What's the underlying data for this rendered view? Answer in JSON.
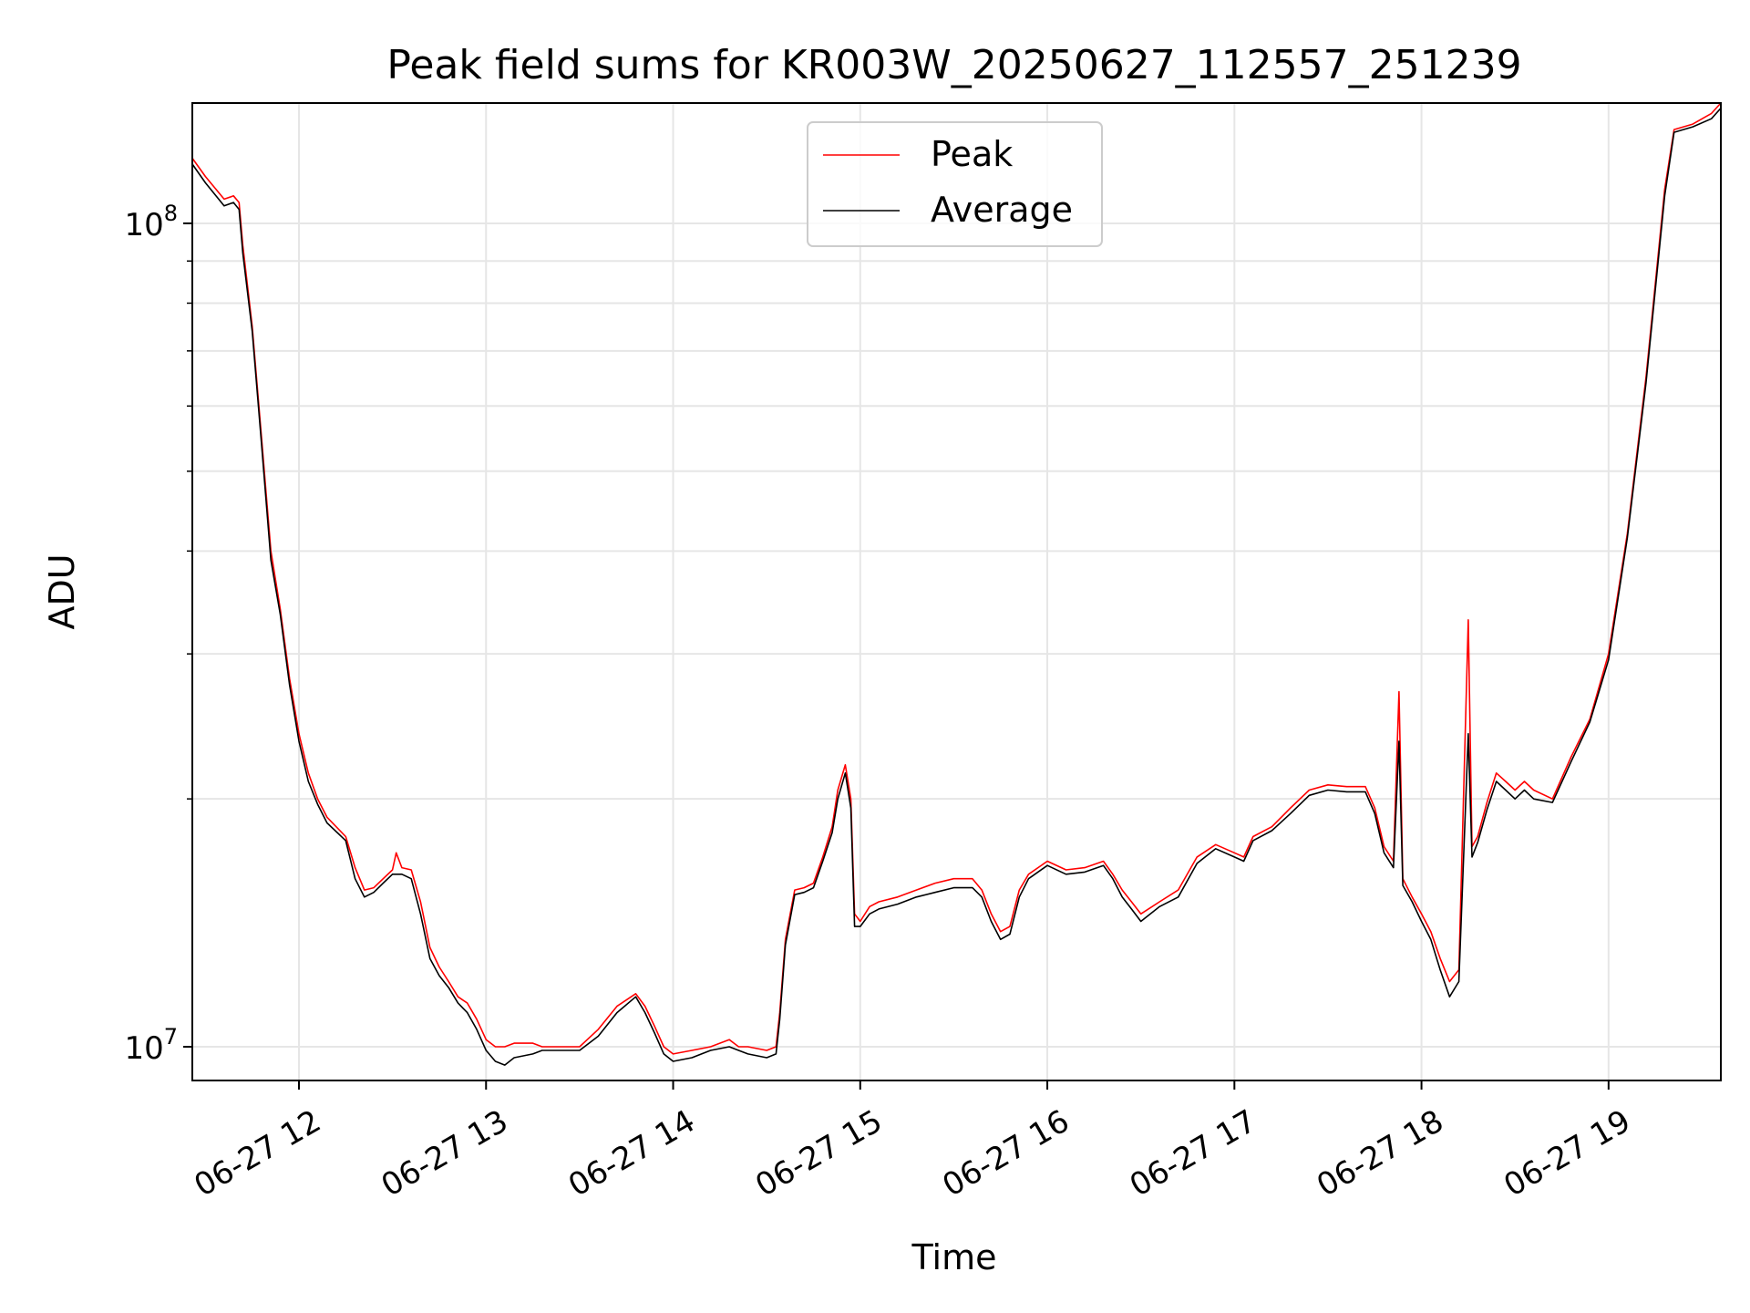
{
  "chart_data": {
    "type": "line",
    "title": "Peak field sums for KR003W_20250627_112557_251239",
    "xlabel": "Time",
    "ylabel": "ADU",
    "x_unit": "time of day on 06-27 (hours)",
    "xlim": [
      11.43,
      19.6
    ],
    "ylim": [
      9100000.0,
      140000000.0
    ],
    "yscale": "log",
    "grid": true,
    "legend_position": "upper center",
    "x_ticks": [
      {
        "value": 12,
        "label": "06-27 12"
      },
      {
        "value": 13,
        "label": "06-27 13"
      },
      {
        "value": 14,
        "label": "06-27 14"
      },
      {
        "value": 15,
        "label": "06-27 15"
      },
      {
        "value": 16,
        "label": "06-27 16"
      },
      {
        "value": 17,
        "label": "06-27 17"
      },
      {
        "value": 18,
        "label": "06-27 18"
      },
      {
        "value": 19,
        "label": "06-27 19"
      }
    ],
    "y_ticks": [
      {
        "value": 10000000,
        "base": "10",
        "exp": "7"
      },
      {
        "value": 100000000,
        "base": "10",
        "exp": "8"
      }
    ],
    "y_minor_ticks": [
      20000000,
      30000000,
      40000000,
      50000000,
      60000000,
      70000000,
      80000000,
      90000000
    ],
    "colors": {
      "peak": "#ff0000",
      "average": "#000000",
      "grid": "#e6e6e6"
    },
    "series": [
      {
        "name": "Peak",
        "color": "#ff0000",
        "points": [
          [
            11.43,
            120000000.0
          ],
          [
            11.5,
            114000000.0
          ],
          [
            11.6,
            107000000.0
          ],
          [
            11.65,
            108000000.0
          ],
          [
            11.68,
            106000000.0
          ],
          [
            11.7,
            94000000.0
          ],
          [
            11.75,
            75000000.0
          ],
          [
            11.8,
            55000000.0
          ],
          [
            11.85,
            40000000.0
          ],
          [
            11.9,
            34000000.0
          ],
          [
            11.95,
            28000000.0
          ],
          [
            12.0,
            24000000.0
          ],
          [
            12.05,
            21500000.0
          ],
          [
            12.1,
            20000000.0
          ],
          [
            12.15,
            19000000.0
          ],
          [
            12.25,
            18000000.0
          ],
          [
            12.3,
            16500000.0
          ],
          [
            12.35,
            15500000.0
          ],
          [
            12.4,
            15600000.0
          ],
          [
            12.45,
            16000000.0
          ],
          [
            12.5,
            16400000.0
          ],
          [
            12.52,
            17200000.0
          ],
          [
            12.55,
            16500000.0
          ],
          [
            12.6,
            16400000.0
          ],
          [
            12.65,
            15000000.0
          ],
          [
            12.7,
            13200000.0
          ],
          [
            12.75,
            12500000.0
          ],
          [
            12.8,
            12000000.0
          ],
          [
            12.85,
            11500000.0
          ],
          [
            12.9,
            11300000.0
          ],
          [
            12.95,
            10800000.0
          ],
          [
            13.0,
            10200000.0
          ],
          [
            13.05,
            10000000.0
          ],
          [
            13.1,
            10000000.0
          ],
          [
            13.15,
            10100000.0
          ],
          [
            13.25,
            10100000.0
          ],
          [
            13.3,
            10000000.0
          ],
          [
            13.4,
            10000000.0
          ],
          [
            13.5,
            10000000.0
          ],
          [
            13.6,
            10500000.0
          ],
          [
            13.7,
            11200000.0
          ],
          [
            13.8,
            11600000.0
          ],
          [
            13.85,
            11200000.0
          ],
          [
            13.9,
            10600000.0
          ],
          [
            13.95,
            10000000.0
          ],
          [
            14.0,
            9800000.0
          ],
          [
            14.1,
            9900000.0
          ],
          [
            14.2,
            10000000.0
          ],
          [
            14.3,
            10200000.0
          ],
          [
            14.35,
            10000000.0
          ],
          [
            14.4,
            10000000.0
          ],
          [
            14.5,
            9900000.0
          ],
          [
            14.55,
            10000000.0
          ],
          [
            14.57,
            11000000.0
          ],
          [
            14.6,
            13500000.0
          ],
          [
            14.65,
            15500000.0
          ],
          [
            14.7,
            15600000.0
          ],
          [
            14.75,
            15800000.0
          ],
          [
            14.8,
            17000000.0
          ],
          [
            14.85,
            18500000.0
          ],
          [
            14.88,
            20500000.0
          ],
          [
            14.92,
            22000000.0
          ],
          [
            14.95,
            20000000.0
          ],
          [
            14.97,
            14500000.0
          ],
          [
            15.0,
            14200000.0
          ],
          [
            15.05,
            14800000.0
          ],
          [
            15.1,
            15000000.0
          ],
          [
            15.2,
            15200000.0
          ],
          [
            15.3,
            15500000.0
          ],
          [
            15.4,
            15800000.0
          ],
          [
            15.5,
            16000000.0
          ],
          [
            15.6,
            16000000.0
          ],
          [
            15.65,
            15500000.0
          ],
          [
            15.7,
            14500000.0
          ],
          [
            15.75,
            13800000.0
          ],
          [
            15.8,
            14000000.0
          ],
          [
            15.85,
            15500000.0
          ],
          [
            15.9,
            16200000.0
          ],
          [
            16.0,
            16800000.0
          ],
          [
            16.1,
            16400000.0
          ],
          [
            16.2,
            16500000.0
          ],
          [
            16.3,
            16800000.0
          ],
          [
            16.35,
            16200000.0
          ],
          [
            16.4,
            15500000.0
          ],
          [
            16.45,
            15000000.0
          ],
          [
            16.5,
            14500000.0
          ],
          [
            16.6,
            15000000.0
          ],
          [
            16.7,
            15500000.0
          ],
          [
            16.8,
            17000000.0
          ],
          [
            16.9,
            17600000.0
          ],
          [
            17.0,
            17200000.0
          ],
          [
            17.05,
            17000000.0
          ],
          [
            17.1,
            18000000.0
          ],
          [
            17.2,
            18500000.0
          ],
          [
            17.3,
            19500000.0
          ],
          [
            17.4,
            20500000.0
          ],
          [
            17.5,
            20800000.0
          ],
          [
            17.6,
            20700000.0
          ],
          [
            17.7,
            20700000.0
          ],
          [
            17.75,
            19500000.0
          ],
          [
            17.8,
            17500000.0
          ],
          [
            17.85,
            16800000.0
          ],
          [
            17.88,
            27000000.0
          ],
          [
            17.9,
            16000000.0
          ],
          [
            17.95,
            15200000.0
          ],
          [
            18.0,
            14500000.0
          ],
          [
            18.05,
            13800000.0
          ],
          [
            18.1,
            12800000.0
          ],
          [
            18.15,
            12000000.0
          ],
          [
            18.2,
            12400000.0
          ],
          [
            18.25,
            33000000.0
          ],
          [
            18.27,
            17500000.0
          ],
          [
            18.3,
            18000000.0
          ],
          [
            18.35,
            19800000.0
          ],
          [
            18.4,
            21500000.0
          ],
          [
            18.45,
            21000000.0
          ],
          [
            18.5,
            20500000.0
          ],
          [
            18.55,
            21000000.0
          ],
          [
            18.6,
            20500000.0
          ],
          [
            18.7,
            20000000.0
          ],
          [
            18.8,
            22500000.0
          ],
          [
            18.9,
            25000000.0
          ],
          [
            19.0,
            30000000.0
          ],
          [
            19.1,
            42000000.0
          ],
          [
            19.2,
            65000000.0
          ],
          [
            19.3,
            110000000.0
          ],
          [
            19.35,
            130000000.0
          ],
          [
            19.45,
            132000000.0
          ],
          [
            19.55,
            136000000.0
          ],
          [
            19.6,
            140000000.0
          ]
        ]
      },
      {
        "name": "Average",
        "color": "#000000",
        "points": [
          [
            11.43,
            118000000.0
          ],
          [
            11.5,
            112000000.0
          ],
          [
            11.6,
            105000000.0
          ],
          [
            11.65,
            106000000.0
          ],
          [
            11.68,
            104000000.0
          ],
          [
            11.7,
            92000000.0
          ],
          [
            11.75,
            74000000.0
          ],
          [
            11.8,
            54000000.0
          ],
          [
            11.85,
            39000000.0
          ],
          [
            11.9,
            33500000.0
          ],
          [
            11.95,
            27500000.0
          ],
          [
            12.0,
            23500000.0
          ],
          [
            12.05,
            21000000.0
          ],
          [
            12.1,
            19700000.0
          ],
          [
            12.15,
            18700000.0
          ],
          [
            12.25,
            17800000.0
          ],
          [
            12.3,
            16000000.0
          ],
          [
            12.35,
            15200000.0
          ],
          [
            12.4,
            15400000.0
          ],
          [
            12.45,
            15800000.0
          ],
          [
            12.5,
            16200000.0
          ],
          [
            12.55,
            16200000.0
          ],
          [
            12.6,
            16000000.0
          ],
          [
            12.65,
            14500000.0
          ],
          [
            12.7,
            12800000.0
          ],
          [
            12.75,
            12200000.0
          ],
          [
            12.8,
            11800000.0
          ],
          [
            12.85,
            11300000.0
          ],
          [
            12.9,
            11000000.0
          ],
          [
            12.95,
            10500000.0
          ],
          [
            13.0,
            9900000.0
          ],
          [
            13.05,
            9600000.0
          ],
          [
            13.1,
            9500000.0
          ],
          [
            13.15,
            9700000.0
          ],
          [
            13.25,
            9800000.0
          ],
          [
            13.3,
            9900000.0
          ],
          [
            13.4,
            9900000.0
          ],
          [
            13.5,
            9900000.0
          ],
          [
            13.6,
            10300000.0
          ],
          [
            13.7,
            11000000.0
          ],
          [
            13.8,
            11500000.0
          ],
          [
            13.85,
            11000000.0
          ],
          [
            13.9,
            10400000.0
          ],
          [
            13.95,
            9800000.0
          ],
          [
            14.0,
            9600000.0
          ],
          [
            14.1,
            9700000.0
          ],
          [
            14.2,
            9900000.0
          ],
          [
            14.3,
            10000000.0
          ],
          [
            14.35,
            9900000.0
          ],
          [
            14.4,
            9800000.0
          ],
          [
            14.5,
            9700000.0
          ],
          [
            14.55,
            9800000.0
          ],
          [
            14.57,
            10800000.0
          ],
          [
            14.6,
            13300000.0
          ],
          [
            14.65,
            15300000.0
          ],
          [
            14.7,
            15400000.0
          ],
          [
            14.75,
            15600000.0
          ],
          [
            14.8,
            16800000.0
          ],
          [
            14.85,
            18200000.0
          ],
          [
            14.88,
            20000000.0
          ],
          [
            14.92,
            21500000.0
          ],
          [
            14.95,
            19500000.0
          ],
          [
            14.97,
            14000000.0
          ],
          [
            15.0,
            14000000.0
          ],
          [
            15.05,
            14500000.0
          ],
          [
            15.1,
            14700000.0
          ],
          [
            15.2,
            14900000.0
          ],
          [
            15.3,
            15200000.0
          ],
          [
            15.4,
            15400000.0
          ],
          [
            15.5,
            15600000.0
          ],
          [
            15.6,
            15600000.0
          ],
          [
            15.65,
            15200000.0
          ],
          [
            15.7,
            14200000.0
          ],
          [
            15.75,
            13500000.0
          ],
          [
            15.8,
            13700000.0
          ],
          [
            15.85,
            15200000.0
          ],
          [
            15.9,
            16000000.0
          ],
          [
            16.0,
            16600000.0
          ],
          [
            16.1,
            16200000.0
          ],
          [
            16.2,
            16300000.0
          ],
          [
            16.3,
            16600000.0
          ],
          [
            16.35,
            16000000.0
          ],
          [
            16.4,
            15200000.0
          ],
          [
            16.45,
            14700000.0
          ],
          [
            16.5,
            14200000.0
          ],
          [
            16.6,
            14800000.0
          ],
          [
            16.7,
            15200000.0
          ],
          [
            16.8,
            16700000.0
          ],
          [
            16.9,
            17400000.0
          ],
          [
            17.0,
            17000000.0
          ],
          [
            17.05,
            16800000.0
          ],
          [
            17.1,
            17800000.0
          ],
          [
            17.2,
            18300000.0
          ],
          [
            17.3,
            19200000.0
          ],
          [
            17.4,
            20200000.0
          ],
          [
            17.5,
            20500000.0
          ],
          [
            17.6,
            20400000.0
          ],
          [
            17.7,
            20400000.0
          ],
          [
            17.75,
            19200000.0
          ],
          [
            17.8,
            17200000.0
          ],
          [
            17.85,
            16500000.0
          ],
          [
            17.88,
            23500000.0
          ],
          [
            17.9,
            15700000.0
          ],
          [
            17.95,
            15000000.0
          ],
          [
            18.0,
            14200000.0
          ],
          [
            18.05,
            13500000.0
          ],
          [
            18.1,
            12400000.0
          ],
          [
            18.15,
            11500000.0
          ],
          [
            18.2,
            12000000.0
          ],
          [
            18.25,
            24000000.0
          ],
          [
            18.27,
            17000000.0
          ],
          [
            18.3,
            17700000.0
          ],
          [
            18.35,
            19400000.0
          ],
          [
            18.4,
            21000000.0
          ],
          [
            18.45,
            20500000.0
          ],
          [
            18.5,
            20000000.0
          ],
          [
            18.55,
            20500000.0
          ],
          [
            18.6,
            20000000.0
          ],
          [
            18.7,
            19800000.0
          ],
          [
            18.8,
            22200000.0
          ],
          [
            18.9,
            24800000.0
          ],
          [
            19.0,
            29500000.0
          ],
          [
            19.1,
            41500000.0
          ],
          [
            19.2,
            64000000.0
          ],
          [
            19.3,
            108000000.0
          ],
          [
            19.35,
            129000000.0
          ],
          [
            19.45,
            131000000.0
          ],
          [
            19.55,
            134000000.0
          ],
          [
            19.6,
            138000000.0
          ]
        ]
      }
    ]
  }
}
